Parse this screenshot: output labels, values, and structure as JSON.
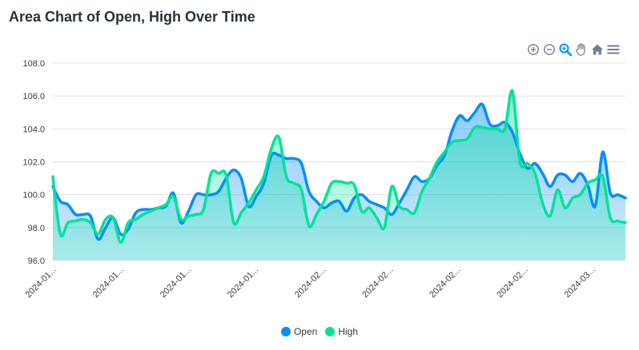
{
  "title": "Area Chart of Open, High Over Time",
  "toolbar": {
    "icons": [
      "zoom-in-icon",
      "zoom-out-icon",
      "selection-zoom-icon",
      "pan-hand-icon",
      "reset-home-icon",
      "menu-icon"
    ],
    "color_inactive": "#6e8192",
    "color_active": "#008ffb"
  },
  "legend": {
    "placement": "bottom-center"
  },
  "colors": {
    "open": "#008ffb",
    "high": "#00e396"
  },
  "chart_data": {
    "type": "area",
    "x_tick_labels": [
      "2024-01...",
      "2024-01...",
      "2024-01...",
      "2024-01...",
      "2024-02...",
      "2024-02...",
      "2024-02...",
      "2024-02...",
      "2024-03..."
    ],
    "ylim": [
      96.0,
      108.0
    ],
    "y_ticks": [
      "96.0",
      "98.0",
      "100.0",
      "102.0",
      "104.0",
      "106.0",
      "108.0"
    ],
    "grid": true,
    "series": [
      {
        "name": "Open",
        "color": "#008ffb",
        "values": [
          100.5,
          99.6,
          99.4,
          98.8,
          98.8,
          98.7,
          97.3,
          98.0,
          98.6,
          97.6,
          97.9,
          98.9,
          99.1,
          99.1,
          99.2,
          99.3,
          100.1,
          98.3,
          99.0,
          100.0,
          100.0,
          100.0,
          100.2,
          101.0,
          101.5,
          101.0,
          99.3,
          99.9,
          100.7,
          102.4,
          102.4,
          102.2,
          102.2,
          101.9,
          100.2,
          99.6,
          99.2,
          99.5,
          99.6,
          99.0,
          99.8,
          100.0,
          99.6,
          99.4,
          99.2,
          98.8,
          99.5,
          100.3,
          101.1,
          100.8,
          101.0,
          101.8,
          102.4,
          103.9,
          104.8,
          104.5,
          105.0,
          105.5,
          104.3,
          104.2,
          104.4,
          103.8,
          102.5,
          101.6,
          101.9,
          101.3,
          100.5,
          101.2,
          101.2,
          100.8,
          101.3,
          100.6,
          99.3,
          102.6,
          100.1,
          100.0,
          99.8
        ]
      },
      {
        "name": "High",
        "color": "#00e396",
        "values": [
          101.1,
          97.6,
          98.3,
          98.4,
          98.5,
          98.3,
          97.6,
          98.5,
          98.6,
          97.1,
          98.3,
          98.5,
          98.8,
          99.0,
          99.2,
          99.4,
          99.9,
          98.5,
          98.7,
          98.8,
          99.1,
          101.3,
          101.3,
          101.2,
          98.3,
          98.9,
          99.5,
          100.3,
          101.1,
          102.8,
          103.5,
          101.1,
          100.7,
          100.3,
          98.1,
          98.8,
          99.6,
          100.7,
          100.8,
          100.7,
          100.6,
          99.0,
          99.2,
          98.6,
          98.0,
          100.5,
          99.3,
          99.1,
          98.9,
          100.2,
          101.0,
          102.0,
          102.6,
          103.2,
          103.3,
          103.4,
          104.1,
          104.1,
          104.0,
          104.0,
          104.0,
          106.3,
          102.0,
          101.9,
          101.3,
          99.5,
          98.7,
          100.3,
          99.2,
          99.8,
          100.0,
          100.7,
          100.9,
          101.1,
          98.6,
          98.4,
          98.3
        ]
      }
    ]
  }
}
